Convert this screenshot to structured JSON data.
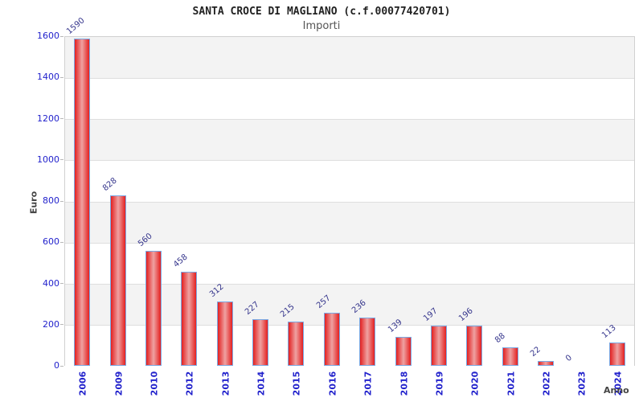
{
  "header": {
    "title": "SANTA CROCE DI MAGLIANO (c.f.00077420701)",
    "subtitle": "Importi"
  },
  "chart_data": {
    "type": "bar",
    "title": "SANTA CROCE DI MAGLIANO (c.f.00077420701)",
    "subtitle": "Importi",
    "xlabel": "Anno",
    "ylabel": "Euro",
    "categories": [
      "2006",
      "2009",
      "2010",
      "2012",
      "2013",
      "2014",
      "2015",
      "2016",
      "2017",
      "2018",
      "2019",
      "2020",
      "2021",
      "2022",
      "2023",
      "2024"
    ],
    "values": [
      1590,
      828,
      560,
      458,
      312,
      227,
      215,
      257,
      236,
      139,
      197,
      196,
      88,
      22,
      0,
      113
    ],
    "ylim": [
      0,
      1600
    ],
    "yticks": [
      0,
      200,
      400,
      600,
      800,
      1000,
      1200,
      1400,
      1600
    ],
    "grid": "horizontal-bands",
    "legend": "none"
  },
  "colors": {
    "tick_label_blue": "#2222cc",
    "value_label_navy": "#35358c",
    "bar_edge_red": "#e32020",
    "bar_center_pink": "#efa2a2",
    "bar_border_blue": "#7aa9e4",
    "band_gray": "#f3f3f3",
    "band_white": "#ffffff",
    "gridline_gray": "#dedede",
    "plot_border": "#d0d0d0",
    "title_color": "#222222",
    "subtitle_color": "#555555",
    "axis_title_color": "#444444"
  }
}
